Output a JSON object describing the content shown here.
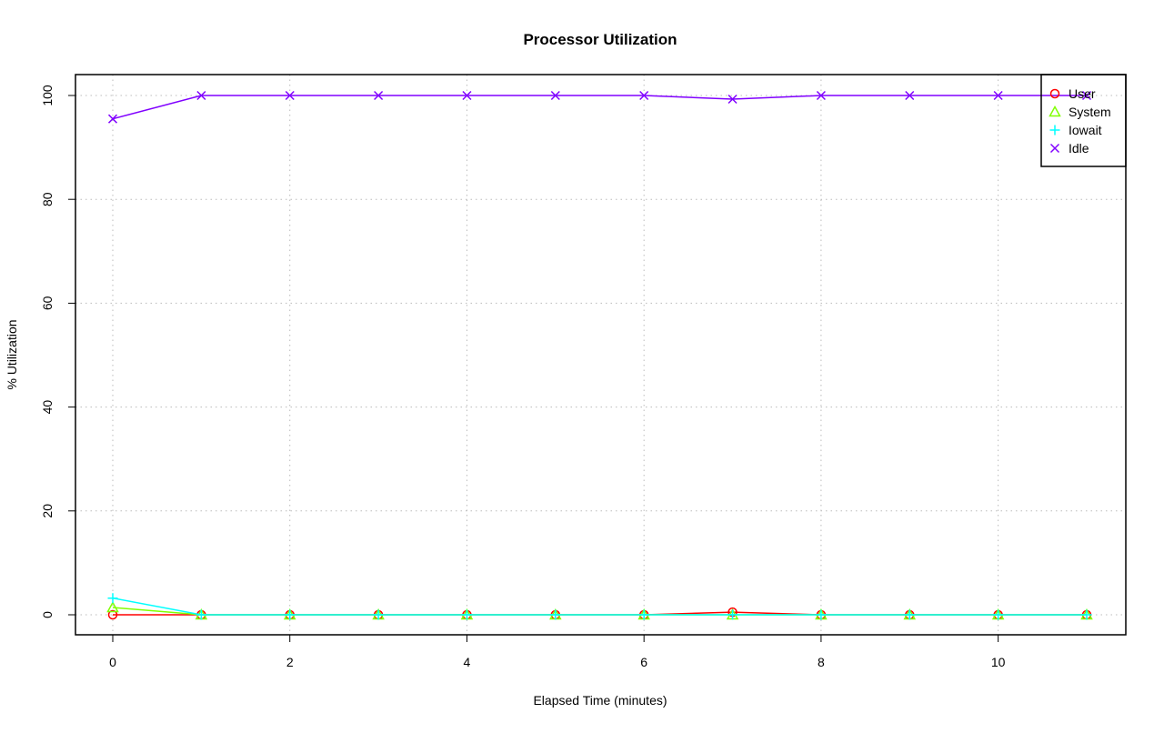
{
  "chart_data": {
    "type": "line",
    "title": "Processor Utilization",
    "xlabel": "Elapsed Time (minutes)",
    "ylabel": "% Utilization",
    "xlim": [
      -0.4,
      11.4
    ],
    "ylim": [
      -4,
      104
    ],
    "x_ticks": [
      0,
      2,
      4,
      6,
      8,
      10
    ],
    "y_ticks": [
      0,
      20,
      40,
      60,
      80,
      100
    ],
    "grid": true,
    "legend_position": "top-right",
    "x": [
      0,
      1,
      2,
      3,
      4,
      5,
      6,
      7,
      8,
      9,
      10,
      11
    ],
    "series": [
      {
        "name": "User",
        "color": "#ff0000",
        "marker": "circle",
        "values": [
          0,
          0,
          0,
          0,
          0,
          0,
          0,
          0.5,
          0,
          0,
          0,
          0
        ]
      },
      {
        "name": "System",
        "color": "#80ff00",
        "marker": "triangle",
        "values": [
          1.4,
          0,
          0,
          0,
          0,
          0,
          0,
          0,
          0,
          0,
          0,
          0
        ]
      },
      {
        "name": "Iowait",
        "color": "#00ffff",
        "marker": "plus",
        "values": [
          3.2,
          0,
          0,
          0,
          0,
          0,
          0,
          0,
          0,
          0,
          0,
          0
        ]
      },
      {
        "name": "Idle",
        "color": "#8000ff",
        "marker": "cross",
        "values": [
          95.5,
          100,
          100,
          100,
          100,
          100,
          100,
          99.3,
          100,
          100,
          100,
          100
        ]
      }
    ]
  }
}
